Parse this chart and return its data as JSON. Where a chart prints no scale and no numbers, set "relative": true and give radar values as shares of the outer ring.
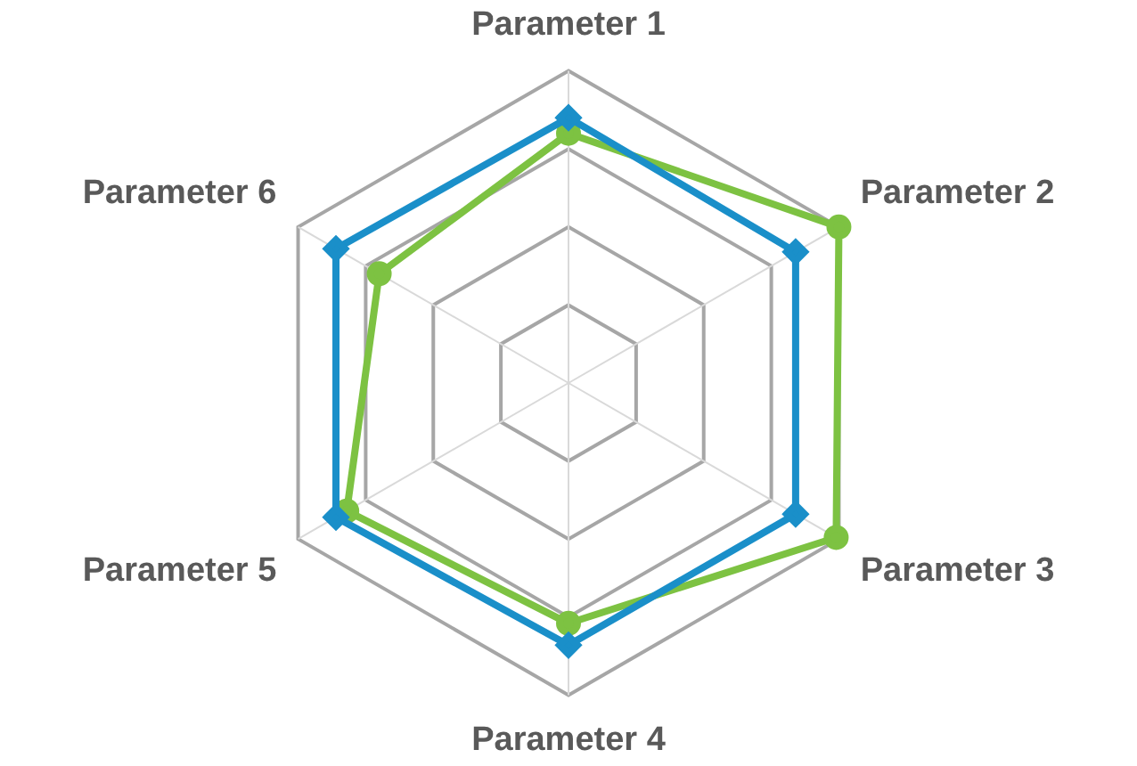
{
  "chart_data": {
    "type": "radar",
    "relative": true,
    "grid": true,
    "legend": false,
    "categories": [
      "Parameter 1",
      "Parameter 2",
      "Parameter 3",
      "Parameter 4",
      "Parameter 5",
      "Parameter 6"
    ],
    "series": [
      {
        "color": "#1a8fc9",
        "marker": "diamond",
        "values": [
          0.85,
          0.84,
          0.84,
          0.84,
          0.86,
          0.86
        ]
      },
      {
        "color": "#7dc242",
        "marker": "circle",
        "values": [
          0.8,
          1.0,
          0.99,
          0.77,
          0.82,
          0.7
        ]
      }
    ]
  }
}
